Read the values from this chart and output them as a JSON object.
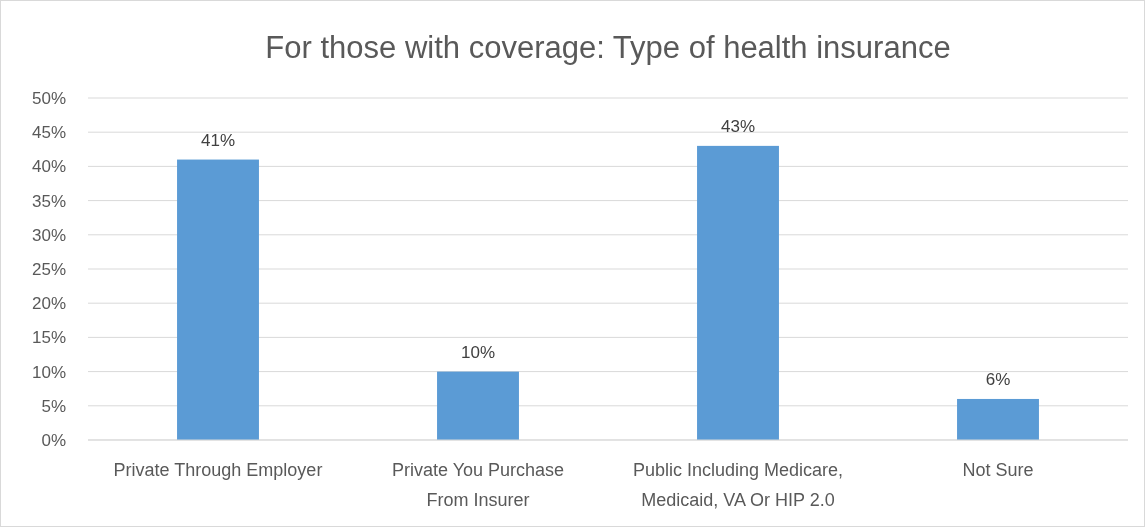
{
  "chart_data": {
    "type": "bar",
    "title": "For those with coverage: Type of health insurance",
    "categories": [
      "Private Through Employer",
      "Private You Purchase From Insurer",
      "Public Including Medicare, Medicaid, VA Or HIP 2.0",
      "Not Sure"
    ],
    "values": [
      41,
      10,
      43,
      6
    ],
    "value_labels": [
      "41%",
      "10%",
      "43%",
      "6%"
    ],
    "color": "#5b9bd5",
    "ylim": [
      0,
      50
    ],
    "yticks": [
      {
        "value": 0,
        "label": "0%"
      },
      {
        "value": 5,
        "label": "5%"
      },
      {
        "value": 10,
        "label": "10%"
      },
      {
        "value": 15,
        "label": "15%"
      },
      {
        "value": 20,
        "label": "20%"
      },
      {
        "value": 25,
        "label": "25%"
      },
      {
        "value": 30,
        "label": "30%"
      },
      {
        "value": 35,
        "label": "35%"
      },
      {
        "value": 40,
        "label": "40%"
      },
      {
        "value": 45,
        "label": "45%"
      },
      {
        "value": 50,
        "label": "50%"
      }
    ],
    "grid": "y"
  }
}
